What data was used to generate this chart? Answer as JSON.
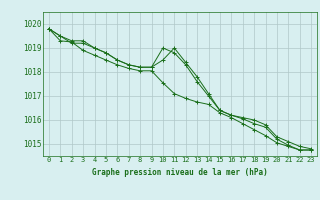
{
  "title": "Graphe pression niveau de la mer (hPa)",
  "background_color": "#d8eff0",
  "grid_color": "#b0c8c8",
  "line_color": "#1a6e1a",
  "xlim": [
    -0.5,
    23.5
  ],
  "ylim": [
    1014.5,
    1020.5
  ],
  "yticks": [
    1015,
    1016,
    1017,
    1018,
    1019,
    1020
  ],
  "xticks": [
    0,
    1,
    2,
    3,
    4,
    5,
    6,
    7,
    8,
    9,
    10,
    11,
    12,
    13,
    14,
    15,
    16,
    17,
    18,
    19,
    20,
    21,
    22,
    23
  ],
  "series": [
    [
      1019.8,
      1019.5,
      1019.3,
      1019.3,
      1019.0,
      1018.8,
      1018.5,
      1018.3,
      1018.2,
      1018.2,
      1018.5,
      1019.0,
      1018.4,
      1017.8,
      1017.1,
      1016.4,
      1016.2,
      1016.1,
      1016.0,
      1015.8,
      1015.3,
      1015.1,
      1014.9,
      1014.8
    ],
    [
      1019.8,
      1019.5,
      1019.2,
      1019.2,
      1019.0,
      1018.8,
      1018.5,
      1018.3,
      1018.2,
      1018.2,
      1019.0,
      1018.8,
      1018.3,
      1017.6,
      1017.0,
      1016.4,
      1016.2,
      1016.05,
      1015.85,
      1015.7,
      1015.2,
      1014.95,
      1014.75,
      1014.75
    ],
    [
      1019.8,
      1019.3,
      1019.25,
      1018.9,
      1018.7,
      1018.5,
      1018.3,
      1018.15,
      1018.05,
      1018.05,
      1017.55,
      1017.1,
      1016.9,
      1016.75,
      1016.65,
      1016.3,
      1016.1,
      1015.85,
      1015.6,
      1015.35,
      1015.05,
      1014.9,
      1014.75,
      1014.75
    ]
  ]
}
